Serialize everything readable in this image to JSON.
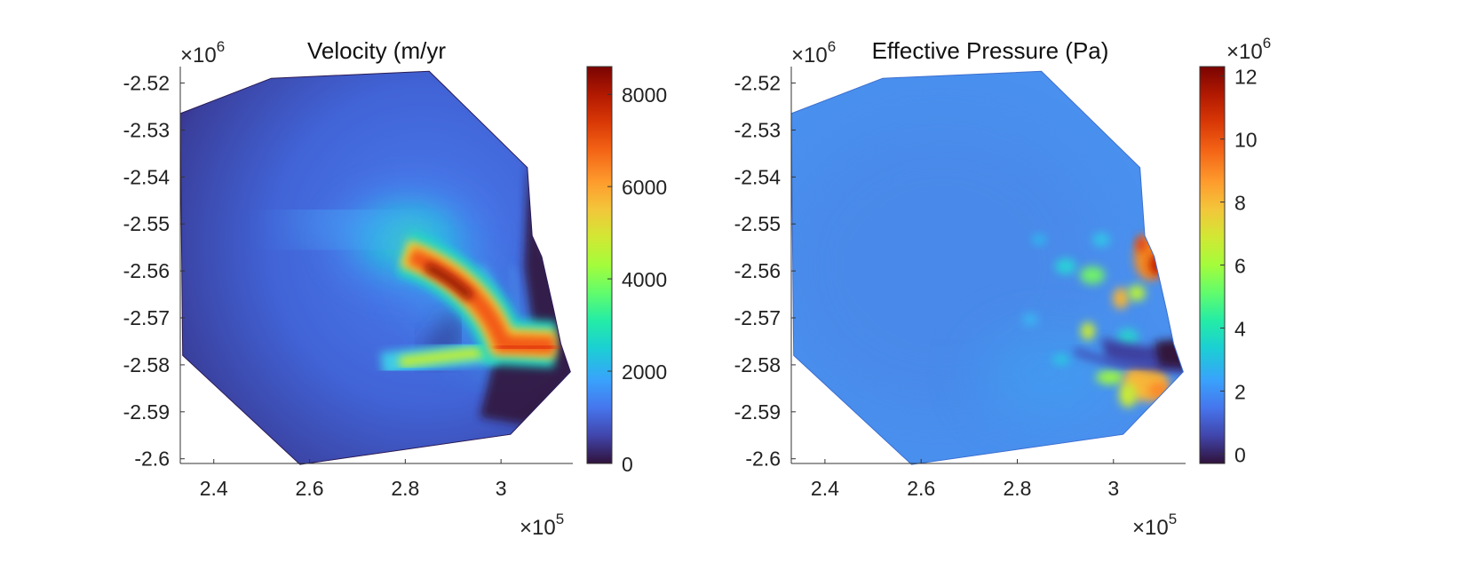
{
  "chart_data": [
    {
      "type": "heatmap",
      "title": "Velocity (m/yr",
      "xlabel": "",
      "ylabel": "",
      "x_multiplier": "×10",
      "x_multiplier_exp": "5",
      "y_multiplier": "×10",
      "y_multiplier_exp": "6",
      "xlim": [
        2.33,
        3.15
      ],
      "ylim": [
        -2.601,
        -2.5165
      ],
      "xticks": [
        2.4,
        2.6,
        2.8,
        3.0
      ],
      "xtick_labels": [
        "2.4",
        "2.6",
        "2.8",
        "3"
      ],
      "yticks": [
        -2.52,
        -2.53,
        -2.54,
        -2.55,
        -2.56,
        -2.57,
        -2.58,
        -2.59,
        -2.6
      ],
      "ytick_labels": [
        "-2.52",
        "-2.53",
        "-2.54",
        "-2.55",
        "-2.56",
        "-2.57",
        "-2.58",
        "-2.59",
        "-2.6"
      ],
      "colorbar": {
        "range": [
          0,
          8600
        ],
        "ticks": [
          0,
          2000,
          4000,
          6000,
          8000
        ],
        "tick_labels": [
          "0",
          "2000",
          "4000",
          "6000",
          "8000"
        ],
        "multiplier": "",
        "multiplier_exp": ""
      },
      "colormap": "turbo",
      "domain_outline": [
        [
          2.33,
          -2.5265
        ],
        [
          2.52,
          -2.519
        ],
        [
          2.85,
          -2.5175
        ],
        [
          3.055,
          -2.538
        ],
        [
          3.065,
          -2.5525
        ],
        [
          3.085,
          -2.557
        ],
        [
          3.11,
          -2.5682
        ],
        [
          3.125,
          -2.5755
        ],
        [
          3.145,
          -2.5815
        ],
        [
          3.02,
          -2.5948
        ],
        [
          2.58,
          -2.6012
        ],
        [
          2.335,
          -2.578
        ]
      ]
    },
    {
      "type": "heatmap",
      "title": "Effective Pressure (Pa)",
      "xlabel": "",
      "ylabel": "",
      "x_multiplier": "×10",
      "x_multiplier_exp": "5",
      "y_multiplier": "×10",
      "y_multiplier_exp": "6",
      "xlim": [
        2.33,
        3.15
      ],
      "ylim": [
        -2.601,
        -2.5165
      ],
      "xticks": [
        2.4,
        2.6,
        2.8,
        3.0
      ],
      "xtick_labels": [
        "2.4",
        "2.6",
        "2.8",
        "3"
      ],
      "yticks": [
        -2.52,
        -2.53,
        -2.54,
        -2.55,
        -2.56,
        -2.57,
        -2.58,
        -2.59,
        -2.6
      ],
      "ytick_labels": [
        "-2.52",
        "-2.53",
        "-2.54",
        "-2.55",
        "-2.56",
        "-2.57",
        "-2.58",
        "-2.59",
        "-2.6"
      ],
      "colorbar": {
        "range": [
          -0.3,
          12.3
        ],
        "ticks": [
          0,
          2,
          4,
          6,
          8,
          10,
          12
        ],
        "tick_labels": [
          "0",
          "2",
          "4",
          "6",
          "8",
          "10",
          "12"
        ],
        "multiplier": "×10",
        "multiplier_exp": "6"
      },
      "colormap": "turbo",
      "domain_outline": [
        [
          2.33,
          -2.5265
        ],
        [
          2.52,
          -2.519
        ],
        [
          2.85,
          -2.5175
        ],
        [
          3.055,
          -2.538
        ],
        [
          3.065,
          -2.5525
        ],
        [
          3.085,
          -2.557
        ],
        [
          3.11,
          -2.5682
        ],
        [
          3.125,
          -2.5755
        ],
        [
          3.145,
          -2.5815
        ],
        [
          3.02,
          -2.5948
        ],
        [
          2.58,
          -2.6012
        ],
        [
          2.335,
          -2.578
        ]
      ]
    }
  ]
}
